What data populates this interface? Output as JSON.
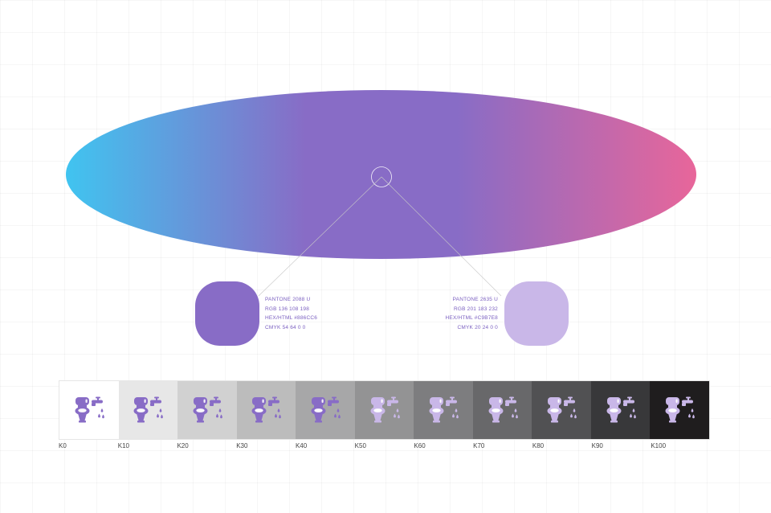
{
  "gradient": {
    "colors": [
      "#40c4f0",
      "#886cc6",
      "#e8669a"
    ]
  },
  "swatches": {
    "primary": {
      "color": "#886CC6",
      "text_color": "#7a5fc0",
      "pantone": "PANTONE 2088 U",
      "rgb": "RGB 136 108 198",
      "hex": "HEX/HTML #886CC6",
      "cmyk": "CMYK 54 64 0 0"
    },
    "secondary": {
      "color": "#C9B7E8",
      "text_color": "#7a5fc0",
      "pantone": "PANTONE 2635 U",
      "rgb": "RGB 201 183 232",
      "hex": "HEX/HTML #C9B7E8",
      "cmyk": "CMYK 20 24 0 0"
    }
  },
  "tints": [
    {
      "label": "K0",
      "background": "#ffffff",
      "icon": "#886CC6"
    },
    {
      "label": "K10",
      "background": "#e7e7e7",
      "icon": "#886CC6"
    },
    {
      "label": "K20",
      "background": "#d1d1d1",
      "icon": "#886CC6"
    },
    {
      "label": "K30",
      "background": "#bcbcbc",
      "icon": "#886CC6"
    },
    {
      "label": "K40",
      "background": "#a7a7a8",
      "icon": "#886CC6"
    },
    {
      "label": "K50",
      "background": "#939394",
      "icon": "#C9B7E8"
    },
    {
      "label": "K60",
      "background": "#7d7d7f",
      "icon": "#C9B7E8"
    },
    {
      "label": "K70",
      "background": "#68686a",
      "icon": "#C9B7E8"
    },
    {
      "label": "K80",
      "background": "#515153",
      "icon": "#C9B7E8"
    },
    {
      "label": "K90",
      "background": "#38383a",
      "icon": "#C9B7E8"
    },
    {
      "label": "K100",
      "background": "#1f1d1e",
      "icon": "#C9B7E8"
    }
  ],
  "icon_name": "toilet-faucet-icon"
}
